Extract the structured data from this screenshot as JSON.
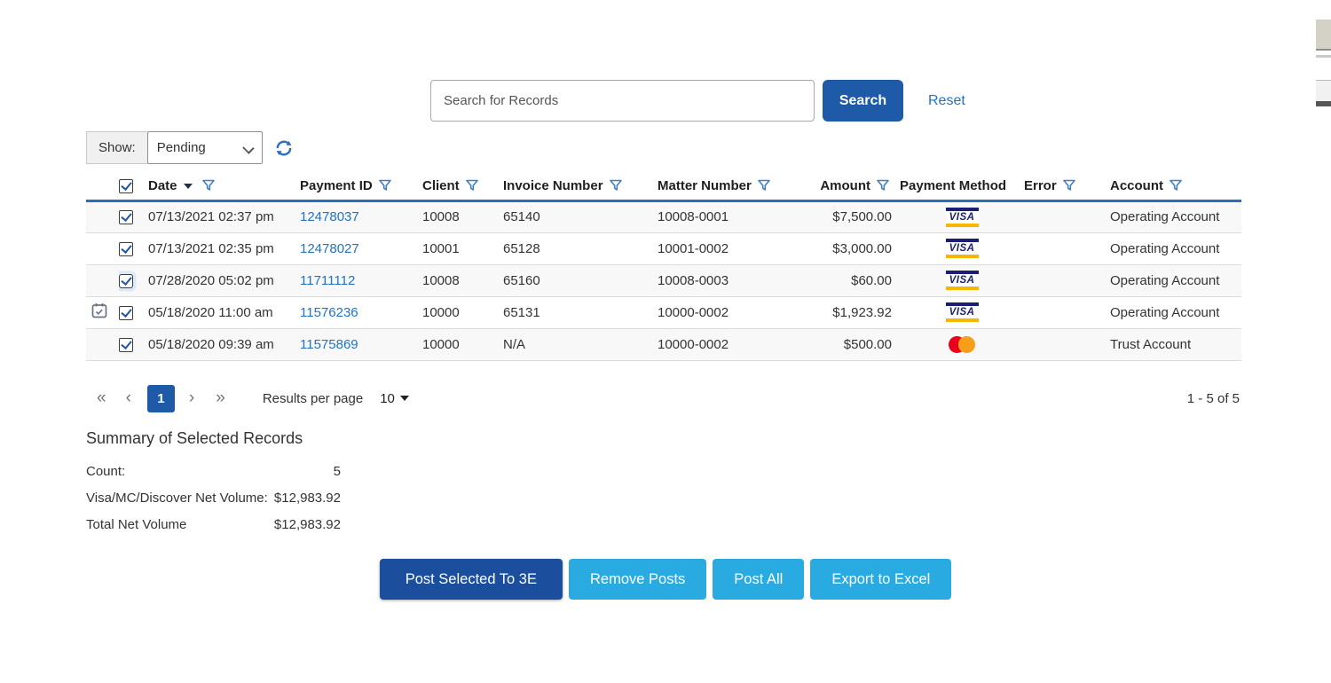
{
  "search": {
    "placeholder": "Search for Records",
    "search_button": "Search",
    "reset_link": "Reset"
  },
  "show_filter": {
    "label": "Show:",
    "selected": "Pending"
  },
  "table": {
    "select_all_checked": true,
    "columns": [
      {
        "label": "Date",
        "sort": "desc",
        "filter": true
      },
      {
        "label": "Payment ID",
        "filter": true
      },
      {
        "label": "Client",
        "filter": true
      },
      {
        "label": "Invoice Number",
        "filter": true
      },
      {
        "label": "Matter Number",
        "filter": true
      },
      {
        "label": "Amount",
        "filter": true
      },
      {
        "label": "Payment Method",
        "filter": false
      },
      {
        "label": "Error",
        "filter": true
      },
      {
        "label": "Account",
        "filter": true
      }
    ],
    "rows": [
      {
        "checked": true,
        "scheduled": false,
        "focus": false,
        "date": "07/13/2021 02:37 pm",
        "payment_id": "12478037",
        "client": "10008",
        "invoice": "65140",
        "matter": "10008-0001",
        "amount": "$7,500.00",
        "method": "visa",
        "error": "",
        "account": "Operating Account"
      },
      {
        "checked": true,
        "scheduled": false,
        "focus": false,
        "date": "07/13/2021 02:35 pm",
        "payment_id": "12478027",
        "client": "10001",
        "invoice": "65128",
        "matter": "10001-0002",
        "amount": "$3,000.00",
        "method": "visa",
        "error": "",
        "account": "Operating Account"
      },
      {
        "checked": true,
        "scheduled": false,
        "focus": true,
        "date": "07/28/2020 05:02 pm",
        "payment_id": "11711112",
        "client": "10008",
        "invoice": "65160",
        "matter": "10008-0003",
        "amount": "$60.00",
        "method": "visa",
        "error": "",
        "account": "Operating Account"
      },
      {
        "checked": true,
        "scheduled": true,
        "focus": false,
        "date": "05/18/2020 11:00 am",
        "payment_id": "11576236",
        "client": "10000",
        "invoice": "65131",
        "matter": "10000-0002",
        "amount": "$1,923.92",
        "method": "visa",
        "error": "",
        "account": "Operating Account"
      },
      {
        "checked": true,
        "scheduled": false,
        "focus": false,
        "date": "05/18/2020 09:39 am",
        "payment_id": "11575869",
        "client": "10000",
        "invoice": "N/A",
        "matter": "10000-0002",
        "amount": "$500.00",
        "method": "mastercard",
        "error": "",
        "account": "Trust Account"
      }
    ]
  },
  "pagination": {
    "first": "«",
    "prev": "‹",
    "page": "1",
    "next": "›",
    "last": "»",
    "results_per_page_label": "Results per page",
    "per_page": "10",
    "range_label": "1 - 5 of 5"
  },
  "summary": {
    "title": "Summary of Selected Records",
    "rows": [
      {
        "label": "Count:",
        "value": "5"
      },
      {
        "label": "Visa/MC/Discover Net Volume:",
        "value": "$12,983.92"
      },
      {
        "label": "Total Net Volume",
        "value": "$12,983.92"
      }
    ]
  },
  "actions": {
    "post_selected": "Post Selected To 3E",
    "remove_posts": "Remove Posts",
    "post_all": "Post All",
    "export_excel": "Export to Excel"
  },
  "colors": {
    "primary": "#1e5aa7",
    "primary_dark": "#1b4f9e",
    "light_blue": "#29abe2",
    "link": "#2173c4",
    "header_rule": "#2a6ebb",
    "filter_icon": "#3f7fc1",
    "visa_navy": "#1a1f71",
    "visa_gold": "#f7b600",
    "mc_red": "#eb001b",
    "mc_orange": "#f79e1b"
  }
}
